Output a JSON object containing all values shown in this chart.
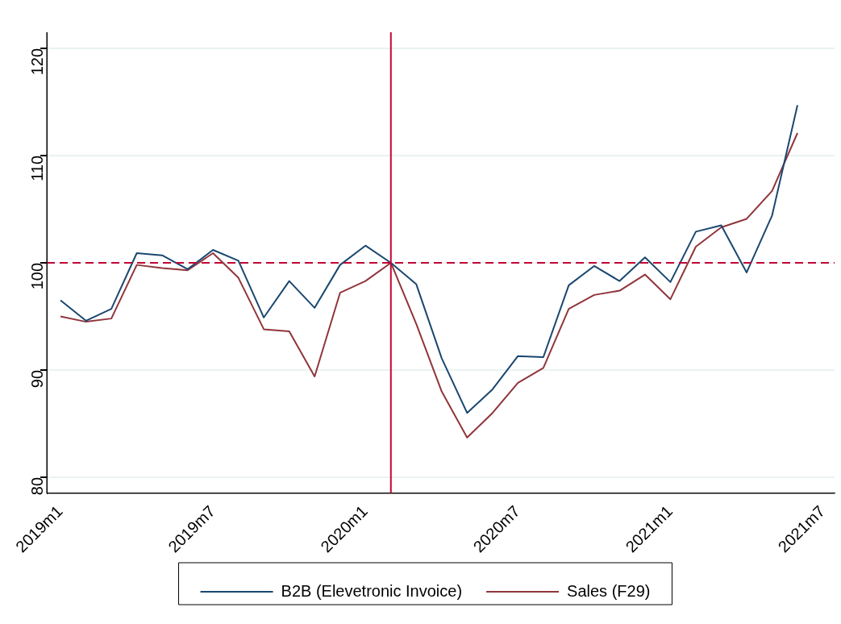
{
  "chart_data": {
    "type": "line",
    "x": [
      "2019-01",
      "2019-02",
      "2019-03",
      "2019-04",
      "2019-05",
      "2019-06",
      "2019-07",
      "2019-08",
      "2019-09",
      "2019-10",
      "2019-11",
      "2019-12",
      "2020-01",
      "2020-02",
      "2020-03",
      "2020-04",
      "2020-05",
      "2020-06",
      "2020-07",
      "2020-08",
      "2020-09",
      "2020-10",
      "2020-11",
      "2020-12",
      "2021-01",
      "2021-02",
      "2021-03",
      "2021-04",
      "2021-05",
      "2021-06"
    ],
    "series": [
      {
        "name": "B2B (Elevetronic Invoice)",
        "color": "#1a476f",
        "values": [
          96.5,
          94.6,
          95.7,
          100.9,
          100.7,
          99.4,
          101.2,
          100.2,
          94.9,
          98.3,
          95.8,
          99.8,
          101.6,
          100,
          98.0,
          91.1,
          86.0,
          88.2,
          91.3,
          91.2,
          97.9,
          99.7,
          98.3,
          100.5,
          98.2,
          102.9,
          103.5,
          99.1,
          104.4,
          114.7
        ]
      },
      {
        "name": "Sales (F29)",
        "color": "#90353b",
        "values": [
          95.0,
          94.5,
          94.8,
          99.8,
          99.5,
          99.3,
          100.9,
          98.6,
          93.8,
          93.6,
          89.4,
          97.2,
          98.3,
          100,
          94.3,
          88.0,
          83.7,
          86.0,
          88.8,
          90.2,
          95.7,
          97.0,
          97.4,
          98.9,
          96.6,
          101.5,
          103.3,
          104.1,
          106.7,
          112.1
        ]
      }
    ],
    "xlim": [
      "2018-12-15",
      "2021-07-15"
    ],
    "xticks": [
      {
        "value": "2019-01",
        "label": "2019m1"
      },
      {
        "value": "2019-07",
        "label": "2019m7"
      },
      {
        "value": "2020-01",
        "label": "2020m1"
      },
      {
        "value": "2020-07",
        "label": "2020m7"
      },
      {
        "value": "2021-01",
        "label": "2021m1"
      },
      {
        "value": "2021-07",
        "label": "2021m7"
      }
    ],
    "ylim": [
      78.5,
      121.5
    ],
    "yticks": [
      80,
      90,
      100,
      110,
      120
    ],
    "ref_lines": [
      {
        "axis": "y",
        "value": 100,
        "color": "#c10534",
        "line_style": "dashed"
      },
      {
        "axis": "x",
        "value": "2020-02",
        "color": "#c10534",
        "line_style": "solid"
      }
    ],
    "grid": "y",
    "legend": "bottom",
    "marker": "none",
    "line_style": "solid"
  }
}
